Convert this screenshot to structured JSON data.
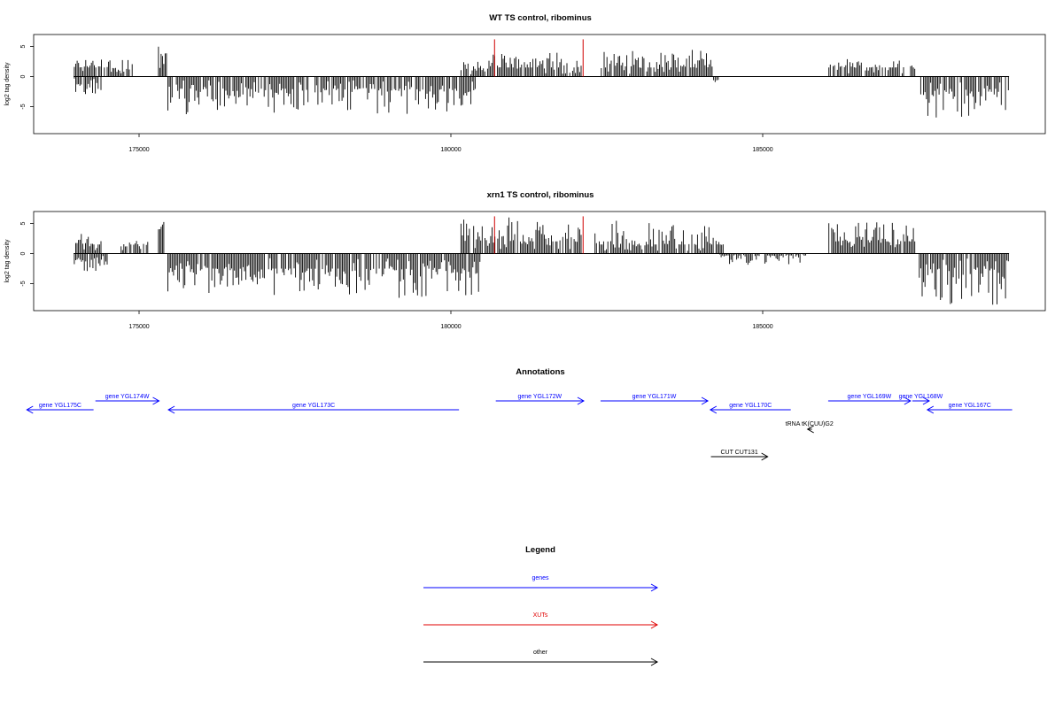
{
  "chart_data": [
    {
      "type": "bar",
      "title": "WT TS control, ribominus",
      "ylabel": "log2 tag density",
      "xlim": [
        173300,
        189000
      ],
      "ylim": [
        -9.5,
        7
      ],
      "x_ticks": [
        "175000",
        "180000",
        "185000"
      ],
      "y_ticks": [
        "5",
        "0",
        "-5"
      ],
      "grid": false,
      "series": [
        {
          "strand": "plus",
          "color": "#000000",
          "segments": [
            [
              173950,
              174500,
              1.5,
              3
            ],
            [
              174500,
              174900,
              0.8,
              3.5
            ],
            [
              175300,
              175450,
              3,
              5
            ],
            [
              180150,
              180600,
              1,
              2.5
            ],
            [
              180600,
              182100,
              1.5,
              4
            ],
            [
              182400,
              184200,
              1.5,
              4.5
            ],
            [
              186050,
              187450,
              1.5,
              3
            ]
          ]
        },
        {
          "strand": "minus",
          "color": "#000000",
          "segments": [
            [
              173950,
              174400,
              -1,
              -3
            ],
            [
              175450,
              180400,
              -2,
              -6.3
            ],
            [
              184200,
              184300,
              -0.5,
              -1
            ],
            [
              187500,
              188950,
              -2.5,
              -7
            ]
          ]
        },
        {
          "strand": "plus",
          "color": "#d00000",
          "spikes": [
            [
              180700,
              6.2
            ],
            [
              182120,
              6.2
            ]
          ]
        }
      ]
    },
    {
      "type": "bar",
      "title": "xrn1 TS control, ribominus",
      "ylabel": "log2 tag density",
      "xlim": [
        173300,
        189000
      ],
      "ylim": [
        -9.5,
        7
      ],
      "x_ticks": [
        "175000",
        "180000",
        "185000"
      ],
      "y_ticks": [
        "5",
        "0",
        "-5"
      ],
      "grid": false,
      "series": [
        {
          "strand": "plus",
          "color": "#000000",
          "segments": [
            [
              173950,
              174400,
              1.5,
              3.5
            ],
            [
              174700,
              175150,
              1.2,
              2.5
            ],
            [
              175300,
              175450,
              4,
              5.5
            ],
            [
              180150,
              182100,
              2,
              6.2
            ],
            [
              182300,
              184400,
              1.5,
              5.5
            ],
            [
              186050,
              187450,
              2,
              5.3
            ]
          ]
        },
        {
          "strand": "minus",
          "color": "#000000",
          "segments": [
            [
              173950,
              174500,
              -1,
              -3
            ],
            [
              175450,
              180500,
              -2.5,
              -7.5
            ],
            [
              184300,
              185700,
              -0.3,
              -2
            ],
            [
              187500,
              188950,
              -2.5,
              -8.8
            ]
          ]
        },
        {
          "strand": "plus",
          "color": "#d00000",
          "spikes": [
            [
              180700,
              6.2
            ],
            [
              182120,
              6.2
            ]
          ]
        }
      ]
    }
  ],
  "annotations": {
    "title": "Annotations",
    "items": [
      {
        "label": "gene YGL175C",
        "class": "genes",
        "dir": "left",
        "start": 173200,
        "end": 174270,
        "lane": 1
      },
      {
        "label": "gene YGL174W",
        "class": "genes",
        "dir": "right",
        "start": 174300,
        "end": 175320,
        "lane": 0
      },
      {
        "label": "gene YGL173C",
        "class": "genes",
        "dir": "left",
        "start": 175470,
        "end": 180130,
        "lane": 1
      },
      {
        "label": "gene YGL172W",
        "class": "genes",
        "dir": "right",
        "start": 180720,
        "end": 182130,
        "lane": 0
      },
      {
        "label": "gene YGL171W",
        "class": "genes",
        "dir": "right",
        "start": 182400,
        "end": 184120,
        "lane": 0
      },
      {
        "label": "gene YGL170C",
        "class": "genes",
        "dir": "left",
        "start": 184160,
        "end": 185450,
        "lane": 1
      },
      {
        "label": "gene YGL169W",
        "class": "genes",
        "dir": "right",
        "start": 186050,
        "end": 187370,
        "lane": 0
      },
      {
        "label": "gene YGL168W",
        "class": "genes",
        "dir": "right",
        "start": 187400,
        "end": 187670,
        "lane": 0
      },
      {
        "label": "gene YGL167C",
        "class": "genes",
        "dir": "left",
        "start": 187640,
        "end": 189000,
        "lane": 1
      },
      {
        "label": "tRNA tK(CUU)G2",
        "class": "other",
        "dir": "left",
        "start": 185720,
        "end": 185790,
        "lane": 2
      },
      {
        "label": "CUT CUT131",
        "class": "other",
        "dir": "right",
        "start": 184170,
        "end": 185080,
        "lane": 3
      }
    ]
  },
  "legend": {
    "title": "Legend",
    "items": [
      {
        "label": "genes",
        "color": "#0000ff"
      },
      {
        "label": "XUTs",
        "color": "#e00000"
      },
      {
        "label": "other",
        "color": "#000000"
      }
    ]
  }
}
